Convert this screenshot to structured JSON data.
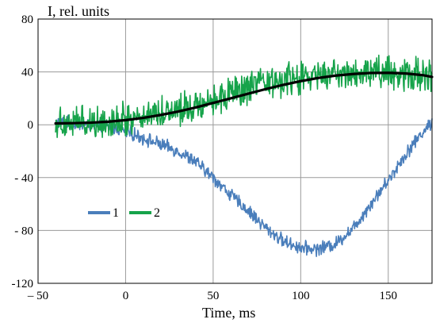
{
  "chart_data": {
    "type": "line",
    "title": "",
    "xlabel": "Time, ms",
    "ylabel": "I, rel. units",
    "xlim": [
      -50,
      175
    ],
    "ylim": [
      -120,
      80
    ],
    "x_ticks": [
      -50,
      0,
      50,
      100,
      150
    ],
    "x_tick_labels": [
      "– 50",
      "0",
      "50",
      "100",
      "150"
    ],
    "y_ticks": [
      80,
      40,
      0,
      -40,
      -80,
      -120
    ],
    "y_tick_labels": [
      "80",
      "40",
      "0",
      "- 40",
      "- 80",
      "-120"
    ],
    "grid": true,
    "legend_position": "lower-left, inside plot",
    "series": [
      {
        "name": "1",
        "color": "#4a7ebb",
        "noise_amplitude": 4,
        "x": [
          -40,
          -30,
          -20,
          -10,
          -5,
          0,
          10,
          20,
          30,
          40,
          50,
          60,
          70,
          80,
          90,
          100,
          110,
          120,
          130,
          140,
          150,
          160,
          170,
          175
        ],
        "values": [
          2,
          1,
          0,
          -2,
          -3,
          -5,
          -10,
          -15,
          -20,
          -28,
          -40,
          -53,
          -65,
          -78,
          -88,
          -93,
          -94,
          -90,
          -78,
          -60,
          -42,
          -22,
          -5,
          2
        ]
      },
      {
        "name": "2",
        "color": "#16a34a",
        "noise_amplitude": 10,
        "x": [
          -40,
          -30,
          -20,
          -10,
          0,
          10,
          20,
          30,
          40,
          50,
          60,
          70,
          80,
          90,
          100,
          110,
          120,
          130,
          140,
          150,
          160,
          170,
          175
        ],
        "values": [
          2,
          2,
          2,
          3,
          4,
          7,
          10,
          12,
          15,
          19,
          23,
          27,
          31,
          33,
          35,
          37,
          38,
          39,
          40,
          40,
          39,
          38,
          36
        ]
      },
      {
        "name": "",
        "color": "#000000",
        "noise_amplitude": 0,
        "x": [
          -40,
          -30,
          -20,
          -10,
          0,
          10,
          20,
          30,
          40,
          50,
          60,
          70,
          80,
          90,
          100,
          110,
          120,
          130,
          140,
          150,
          160,
          170,
          175
        ],
        "values": [
          1,
          1.2,
          1.6,
          2.3,
          3.5,
          5.2,
          7.4,
          10.0,
          13.1,
          16.5,
          20.0,
          23.5,
          27.0,
          30.2,
          33.0,
          35.4,
          37.2,
          38.4,
          39.2,
          39.3,
          38.8,
          37.5,
          36.2
        ]
      }
    ],
    "legend": [
      {
        "label": "1",
        "color": "#4a7ebb"
      },
      {
        "label": "2",
        "color": "#16a34a"
      }
    ]
  }
}
